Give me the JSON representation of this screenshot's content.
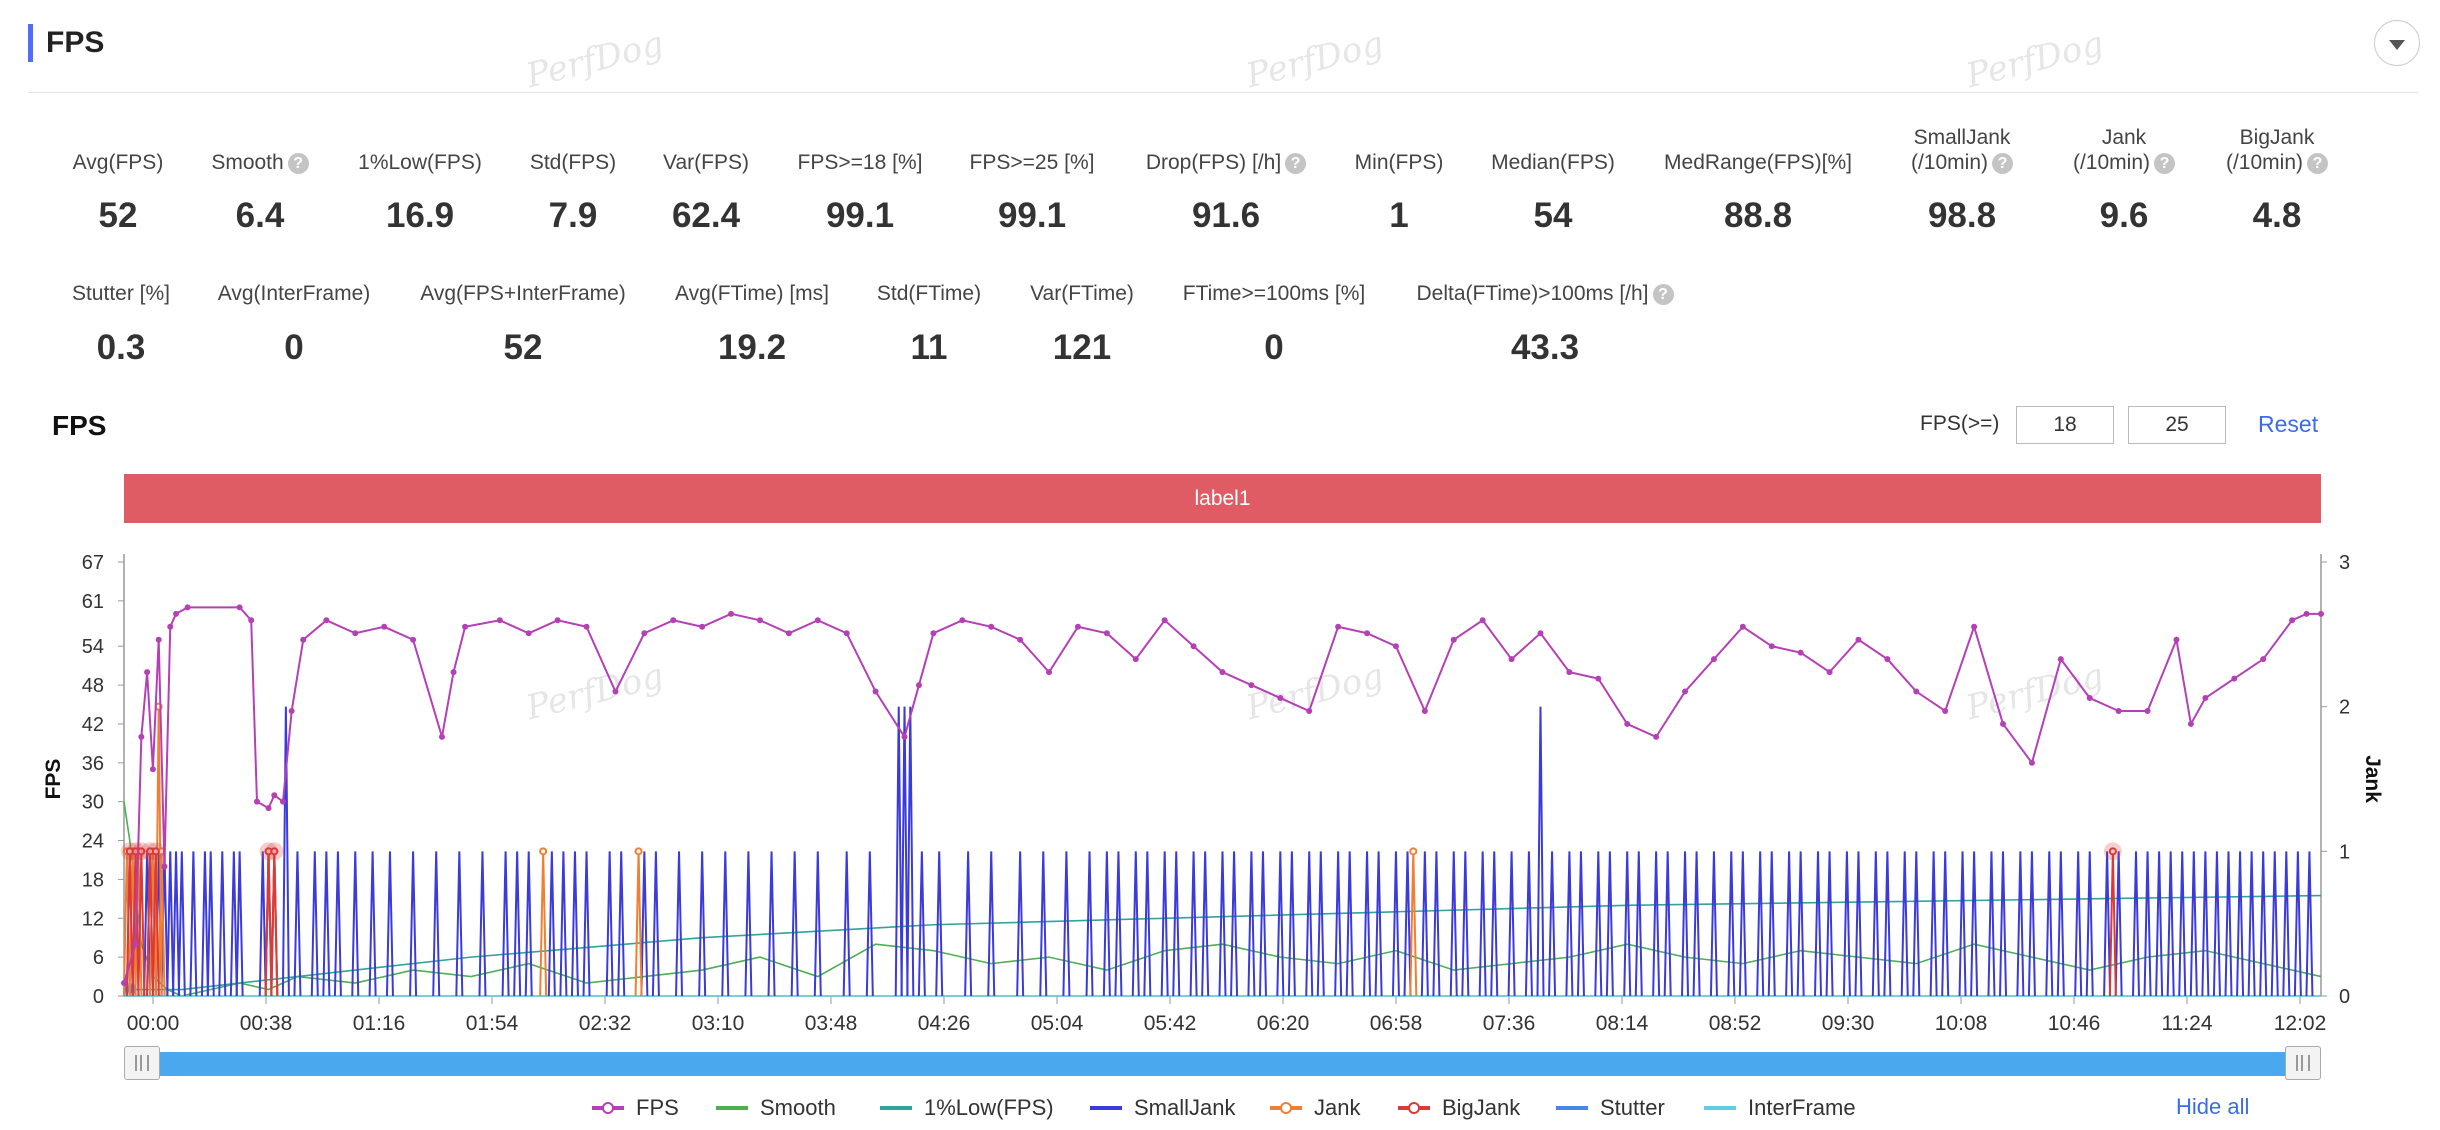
{
  "header": {
    "title": "FPS"
  },
  "watermark": "PerfDog",
  "metrics_row1": [
    {
      "label": "Avg(FPS)",
      "value": "52",
      "help": false
    },
    {
      "label": "Smooth",
      "value": "6.4",
      "help": true
    },
    {
      "label": "1%Low(FPS)",
      "value": "16.9",
      "help": false
    },
    {
      "label": "Std(FPS)",
      "value": "7.9",
      "help": false
    },
    {
      "label": "Var(FPS)",
      "value": "62.4",
      "help": false
    },
    {
      "label": "FPS>=18 [%]",
      "value": "99.1",
      "help": false
    },
    {
      "label": "FPS>=25 [%]",
      "value": "99.1",
      "help": false
    },
    {
      "label": "Drop(FPS) [/h]",
      "value": "91.6",
      "help": true
    },
    {
      "label": "Min(FPS)",
      "value": "1",
      "help": false
    },
    {
      "label": "Median(FPS)",
      "value": "54",
      "help": false
    },
    {
      "label": "MedRange(FPS)[%]",
      "value": "88.8",
      "help": false
    },
    {
      "label": "SmallJank\n(/10min)",
      "value": "98.8",
      "help": true
    },
    {
      "label": "Jank\n(/10min)",
      "value": "9.6",
      "help": true
    },
    {
      "label": "BigJank\n(/10min)",
      "value": "4.8",
      "help": true
    }
  ],
  "metrics_row2": [
    {
      "label": "Stutter [%]",
      "value": "0.3",
      "help": false
    },
    {
      "label": "Avg(InterFrame)",
      "value": "0",
      "help": false
    },
    {
      "label": "Avg(FPS+InterFrame)",
      "value": "52",
      "help": false
    },
    {
      "label": "Avg(FTime) [ms]",
      "value": "19.2",
      "help": false
    },
    {
      "label": "Std(FTime)",
      "value": "11",
      "help": false
    },
    {
      "label": "Var(FTime)",
      "value": "121",
      "help": false
    },
    {
      "label": "FTime>=100ms [%]",
      "value": "0",
      "help": false
    },
    {
      "label": "Delta(FTime)>100ms [/h]",
      "value": "43.3",
      "help": true
    }
  ],
  "chart_section": {
    "title": "FPS",
    "threshold_label": "FPS(>=)",
    "threshold_1": "18",
    "threshold_2": "25",
    "reset_label": "Reset",
    "band_label": "label1",
    "hide_all_label": "Hide all"
  },
  "chart_data": {
    "type": "line",
    "y_left": {
      "label": "FPS",
      "range": [
        0,
        67
      ],
      "ticks": [
        0,
        6,
        12,
        18,
        24,
        30,
        36,
        42,
        48,
        54,
        61,
        67
      ]
    },
    "y_right": {
      "label": "Jank",
      "range": [
        0,
        3
      ],
      "ticks": [
        0,
        1,
        2,
        3
      ]
    },
    "x_ticks": [
      "00:00",
      "00:38",
      "01:16",
      "01:54",
      "02:32",
      "03:10",
      "03:48",
      "04:26",
      "05:04",
      "05:42",
      "06:20",
      "06:58",
      "07:36",
      "08:14",
      "08:52",
      "09:30",
      "10:08",
      "10:46",
      "11:24",
      "12:02"
    ],
    "x_range_seconds": [
      0,
      760
    ],
    "grid": false,
    "legend_position": "bottom",
    "colors": {
      "FPS": "#b540b5",
      "Smooth": "#4caf50",
      "1%Low(FPS)": "#2fa59a",
      "SmallJank": "#3b3bdc",
      "Jank": "#f07f33",
      "BigJank": "#d93a3a",
      "Stutter": "#4a86e8",
      "InterFrame": "#5bd0e0"
    },
    "series": [
      {
        "name": "FPS",
        "axis": "left",
        "x": [
          0,
          4,
          6,
          8,
          10,
          12,
          14,
          16,
          18,
          22,
          40,
          44,
          46,
          50,
          52,
          55,
          58,
          62,
          70,
          80,
          90,
          100,
          110,
          114,
          118,
          130,
          140,
          150,
          160,
          170,
          180,
          190,
          200,
          210,
          220,
          230,
          240,
          250,
          260,
          270,
          275,
          280,
          290,
          300,
          310,
          320,
          330,
          340,
          350,
          360,
          370,
          380,
          390,
          400,
          410,
          420,
          430,
          440,
          450,
          460,
          470,
          480,
          490,
          500,
          510,
          520,
          530,
          540,
          550,
          560,
          570,
          580,
          590,
          600,
          610,
          620,
          630,
          640,
          650,
          660,
          670,
          680,
          690,
          700,
          710,
          715,
          720,
          730,
          740,
          750,
          755,
          760
        ],
        "y": [
          2,
          8,
          40,
          50,
          35,
          55,
          20,
          57,
          59,
          60,
          60,
          58,
          30,
          29,
          31,
          30,
          44,
          55,
          58,
          56,
          57,
          55,
          40,
          50,
          57,
          58,
          56,
          58,
          57,
          47,
          56,
          58,
          57,
          59,
          58,
          56,
          58,
          56,
          47,
          40,
          48,
          56,
          58,
          57,
          55,
          50,
          57,
          56,
          52,
          58,
          54,
          50,
          48,
          46,
          44,
          57,
          56,
          54,
          44,
          55,
          58,
          52,
          56,
          50,
          49,
          42,
          40,
          47,
          52,
          57,
          54,
          53,
          50,
          55,
          52,
          47,
          44,
          57,
          42,
          36,
          52,
          46,
          44,
          44,
          55,
          42,
          46,
          49,
          52,
          58,
          59,
          59
        ]
      },
      {
        "name": "Smooth",
        "axis": "left",
        "x": [
          0,
          2,
          6,
          10,
          15,
          20,
          30,
          40,
          50,
          60,
          80,
          100,
          120,
          140,
          160,
          180,
          200,
          220,
          240,
          260,
          280,
          300,
          320,
          340,
          360,
          380,
          400,
          420,
          440,
          460,
          480,
          500,
          520,
          540,
          560,
          580,
          600,
          620,
          640,
          660,
          680,
          700,
          720,
          740,
          760
        ],
        "y": [
          30,
          24,
          8,
          3,
          1,
          0,
          1,
          2,
          1,
          3,
          2,
          4,
          3,
          5,
          2,
          3,
          4,
          6,
          3,
          8,
          7,
          5,
          6,
          4,
          7,
          8,
          6,
          5,
          7,
          4,
          5,
          6,
          8,
          6,
          5,
          7,
          6,
          5,
          8,
          6,
          4,
          6,
          7,
          5,
          3
        ]
      },
      {
        "name": "1%Low(FPS)",
        "axis": "left",
        "x": [
          0,
          20,
          60,
          120,
          200,
          280,
          360,
          440,
          520,
          600,
          680,
          760
        ],
        "y": [
          1,
          1,
          3,
          6,
          9,
          11,
          12,
          13,
          14,
          14.5,
          15,
          15.5
        ]
      },
      {
        "name": "SmallJank",
        "axis": "right",
        "x": [
          2,
          4,
          8,
          10,
          12,
          14,
          16,
          18,
          20,
          24,
          28,
          30,
          34,
          38,
          40,
          48,
          50,
          52,
          56,
          60,
          66,
          70,
          74,
          80,
          86,
          92,
          100,
          108,
          116,
          124,
          132,
          136,
          140,
          148,
          152,
          156,
          160,
          168,
          172,
          180,
          184,
          192,
          200,
          208,
          216,
          224,
          232,
          240,
          250,
          258,
          268,
          270,
          272,
          276,
          282,
          292,
          300,
          310,
          318,
          326,
          334,
          340,
          344,
          350,
          354,
          360,
          364,
          370,
          374,
          380,
          384,
          390,
          394,
          400,
          404,
          410,
          414,
          420,
          424,
          430,
          434,
          440,
          444,
          450,
          454,
          460,
          464,
          470,
          474,
          480,
          486,
          490,
          494,
          500,
          504,
          510,
          514,
          520,
          524,
          530,
          534,
          540,
          544,
          550,
          556,
          560,
          566,
          570,
          576,
          580,
          586,
          590,
          596,
          600,
          606,
          610,
          616,
          620,
          626,
          630,
          636,
          640,
          646,
          650,
          656,
          660,
          666,
          670,
          676,
          680,
          686,
          690,
          696,
          700,
          704,
          708,
          712,
          716,
          720,
          724,
          728,
          732,
          736,
          740,
          744,
          748,
          752,
          756
        ],
        "y": [
          1,
          1,
          1,
          1,
          1,
          1,
          1,
          1,
          1,
          1,
          1,
          1,
          1,
          1,
          1,
          1,
          1,
          1,
          2,
          1,
          1,
          1,
          1,
          1,
          1,
          1,
          1,
          1,
          1,
          1,
          1,
          1,
          1,
          1,
          1,
          1,
          1,
          1,
          1,
          1,
          1,
          1,
          1,
          1,
          1,
          1,
          1,
          1,
          1,
          1,
          2,
          2,
          2,
          1,
          1,
          1,
          1,
          1,
          1,
          1,
          1,
          1,
          1,
          1,
          1,
          1,
          1,
          1,
          1,
          1,
          1,
          1,
          1,
          1,
          1,
          1,
          1,
          1,
          1,
          1,
          1,
          1,
          1,
          1,
          1,
          1,
          1,
          1,
          1,
          1,
          1,
          2,
          1,
          1,
          1,
          1,
          1,
          1,
          1,
          1,
          1,
          1,
          1,
          1,
          1,
          1,
          1,
          1,
          1,
          1,
          1,
          1,
          1,
          1,
          1,
          1,
          1,
          1,
          1,
          1,
          1,
          1,
          1,
          1,
          1,
          1,
          1,
          1,
          1,
          1,
          1,
          1,
          1,
          1,
          1,
          1,
          1,
          1,
          1,
          1,
          1,
          1,
          1,
          1,
          1,
          1,
          1,
          1
        ]
      },
      {
        "name": "Jank",
        "axis": "right",
        "x": [
          1,
          3,
          5,
          9,
          10,
          12,
          13,
          50,
          52,
          145,
          178,
          446
        ],
        "y": [
          1,
          1,
          1,
          1,
          1,
          2,
          1,
          1,
          1,
          1,
          1,
          1
        ]
      },
      {
        "name": "BigJank",
        "axis": "right",
        "x": [
          2,
          4,
          6,
          9,
          11,
          50,
          52,
          688
        ],
        "y": [
          1,
          1,
          1,
          1,
          1,
          1,
          1,
          1
        ]
      },
      {
        "name": "Stutter",
        "axis": "right",
        "x": [
          1,
          3
        ],
        "y": [
          0.1,
          0.1
        ]
      },
      {
        "name": "InterFrame",
        "axis": "right",
        "x": [
          0,
          760
        ],
        "y": [
          0,
          0
        ]
      }
    ]
  },
  "legend": [
    {
      "name": "FPS",
      "marker": true
    },
    {
      "name": "Smooth",
      "marker": false
    },
    {
      "name": "1%Low(FPS)",
      "marker": false
    },
    {
      "name": "SmallJank",
      "marker": false
    },
    {
      "name": "Jank",
      "marker": true
    },
    {
      "name": "BigJank",
      "marker": true
    },
    {
      "name": "Stutter",
      "marker": false
    },
    {
      "name": "InterFrame",
      "marker": false
    }
  ]
}
